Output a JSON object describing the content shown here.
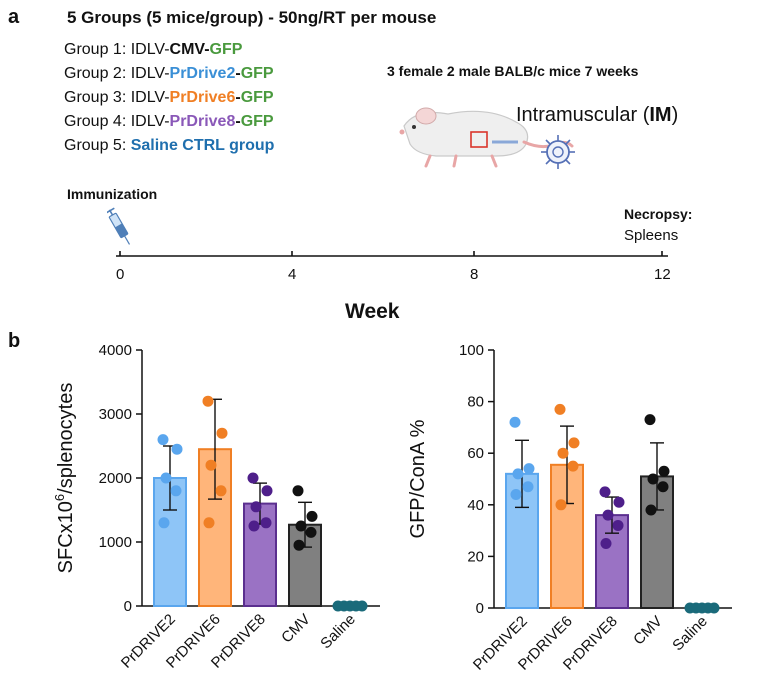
{
  "panel_a": {
    "letter": "a",
    "headline": "5 Groups (5 mice/group) - 50ng/RT per mouse",
    "groups": [
      {
        "prefix": "Group 1: ",
        "vector": "IDLV-",
        "promoter": "CMV",
        "dash": "-",
        "reporter": "GFP",
        "promoter_color": "#111111"
      },
      {
        "prefix": "Group 2: ",
        "vector": "IDLV-",
        "promoter": "PrDrive2",
        "dash": "-",
        "reporter": "GFP",
        "promoter_color": "#3a8fd6"
      },
      {
        "prefix": "Group 3: ",
        "vector": "IDLV-",
        "promoter": "PrDrive6",
        "dash": "-",
        "reporter": "GFP",
        "promoter_color": "#f07f24"
      },
      {
        "prefix": "Group 4: ",
        "vector": "IDLV-",
        "promoter": "PrDrive8",
        "dash": "-",
        "reporter": "GFP",
        "promoter_color": "#8a58b8"
      },
      {
        "prefix": "Group 5: ",
        "text": "Saline CTRL group",
        "text_color": "#1f6fae"
      }
    ],
    "gfp_color": "#4a9a3e",
    "mice_info": "3 female 2 male BALB/c mice 7 weeks",
    "route_prefix": "Intramuscular (",
    "route_abbr": "IM",
    "route_suffix": ")",
    "timeline": {
      "start_label": "Immunization",
      "end_label": "Necropsy:",
      "end_sublabel": "Spleens",
      "ticks": [
        "0",
        "4",
        "8",
        "12"
      ],
      "axis_label": "Week"
    },
    "icons": [
      "mouse-illustration-icon",
      "virus-particle-icon",
      "syringe-icon"
    ]
  },
  "panel_b": {
    "letter": "b"
  },
  "chart_data": [
    {
      "type": "bar",
      "ylabel": "SFCx10⁶/splenocytes",
      "ylabel_base": "SFCx10",
      "ylabel_exp": "6",
      "ylabel_rest": "/splenocytes",
      "ylim": [
        0,
        4000
      ],
      "yticks": [
        "0",
        "1000",
        "2000",
        "3000",
        "4000"
      ],
      "ytick_values": [
        0,
        1000,
        2000,
        3000,
        4000
      ],
      "categories": [
        "PrDRIVE2",
        "PrDRIVE6",
        "PrDRIVE8",
        "CMV",
        "Saline"
      ],
      "values": [
        2000,
        2450,
        1600,
        1270,
        0
      ],
      "errors": [
        500,
        780,
        320,
        350,
        0
      ],
      "points": [
        [
          2600,
          2450,
          2000,
          1800,
          1300
        ],
        [
          3200,
          2700,
          2200,
          1800,
          1300
        ],
        [
          2000,
          1800,
          1550,
          1300,
          1250
        ],
        [
          1800,
          1400,
          1250,
          1150,
          950
        ],
        [
          0,
          0,
          0,
          0,
          0
        ]
      ],
      "fill_colors": [
        "#8ec5f7",
        "#ffb57a",
        "#9a72c4",
        "#808080",
        "#1a6a7a"
      ],
      "edge_colors": [
        "#5aa6ee",
        "#f07f24",
        "#5b2f8f",
        "#222222",
        "#1a6a7a"
      ],
      "point_colors": [
        "#5aa6ee",
        "#f07f24",
        "#4e1f8a",
        "#111111",
        "#1a6a7a"
      ]
    },
    {
      "type": "bar",
      "ylabel": "GFP/ConA %",
      "ylim": [
        0,
        100
      ],
      "yticks": [
        "0",
        "20",
        "40",
        "60",
        "80",
        "100"
      ],
      "ytick_values": [
        0,
        20,
        40,
        60,
        80,
        100
      ],
      "categories": [
        "PrDRIVE2",
        "PrDRIVE6",
        "PrDRIVE8",
        "CMV",
        "Saline"
      ],
      "values": [
        52,
        55.5,
        36,
        51,
        0
      ],
      "errors": [
        13,
        15,
        7,
        13,
        0
      ],
      "points": [
        [
          72,
          54,
          52,
          47,
          44
        ],
        [
          77,
          64,
          60,
          55,
          40
        ],
        [
          45,
          41,
          36,
          32,
          25
        ],
        [
          73,
          53,
          50,
          47,
          38
        ],
        [
          0,
          0,
          0,
          0,
          0
        ]
      ],
      "fill_colors": [
        "#8ec5f7",
        "#ffb57a",
        "#9a72c4",
        "#808080",
        "#1a6a7a"
      ],
      "edge_colors": [
        "#5aa6ee",
        "#f07f24",
        "#5b2f8f",
        "#222222",
        "#1a6a7a"
      ],
      "point_colors": [
        "#5aa6ee",
        "#f07f24",
        "#4e1f8a",
        "#111111",
        "#1a6a7a"
      ]
    }
  ]
}
